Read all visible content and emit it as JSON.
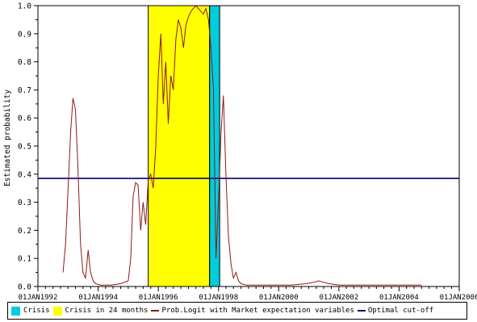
{
  "chart_data": {
    "type": "line",
    "ylabel": "Estimated probability",
    "xlabel": "",
    "ylim": [
      0.0,
      1.0
    ],
    "xlim": [
      "1992-01-01",
      "2006-01-01"
    ],
    "y_ticks": [
      "0.0",
      "0.1",
      "0.2",
      "0.3",
      "0.4",
      "0.5",
      "0.6",
      "0.7",
      "0.8",
      "0.9",
      "1.0"
    ],
    "x_ticks": [
      {
        "date": "1992-01-01",
        "label": "01JAN1992"
      },
      {
        "date": "1994-01-01",
        "label": "01JAN1994"
      },
      {
        "date": "1996-01-01",
        "label": "01JAN1996"
      },
      {
        "date": "1998-01-01",
        "label": "01JAN1998"
      },
      {
        "date": "2000-01-01",
        "label": "01JAN2000"
      },
      {
        "date": "2002-01-01",
        "label": "01JAN2002"
      },
      {
        "date": "2004-01-01",
        "label": "01JAN2004"
      },
      {
        "date": "2006-01-01",
        "label": "01JAN2006"
      }
    ],
    "shaded_periods": [
      {
        "name": "Crisis in 24 months",
        "start": "1995-09-01",
        "end": "1997-09-15",
        "color": "#ffff00"
      },
      {
        "name": "Crisis",
        "start": "1997-09-15",
        "end": "1998-01-15",
        "color": "#00ccdd"
      }
    ],
    "cutoff": {
      "name": "Optimal cut-off",
      "value": 0.385,
      "color": "#000080"
    },
    "series": [
      {
        "name": "Prob.Logit with Market expectation variables",
        "color": "#8b1a1a",
        "x": [
          "1992-11-01",
          "1992-12-01",
          "1993-01-01",
          "1993-02-01",
          "1993-03-01",
          "1993-04-01",
          "1993-05-01",
          "1993-06-01",
          "1993-07-01",
          "1993-08-01",
          "1993-09-01",
          "1993-10-01",
          "1993-11-01",
          "1993-12-01",
          "1994-02-01",
          "1994-06-01",
          "1994-10-01",
          "1995-01-01",
          "1995-02-01",
          "1995-03-01",
          "1995-04-01",
          "1995-05-01",
          "1995-06-01",
          "1995-07-01",
          "1995-08-01",
          "1995-09-01",
          "1995-10-01",
          "1995-11-01",
          "1995-12-01",
          "1996-01-01",
          "1996-02-01",
          "1996-03-01",
          "1996-04-01",
          "1996-05-01",
          "1996-06-01",
          "1996-07-01",
          "1996-08-01",
          "1996-09-01",
          "1996-10-01",
          "1996-11-01",
          "1996-12-01",
          "1997-01-01",
          "1997-02-01",
          "1997-03-01",
          "1997-04-01",
          "1997-05-01",
          "1997-06-01",
          "1997-07-01",
          "1997-08-01",
          "1997-09-01",
          "1997-10-01",
          "1997-11-01",
          "1997-12-01",
          "1998-01-01",
          "1998-02-01",
          "1998-03-01",
          "1998-04-01",
          "1998-05-01",
          "1998-06-01",
          "1998-07-01",
          "1998-08-01",
          "1998-09-01",
          "1998-10-01",
          "1998-12-01",
          "1999-06-01",
          "2000-01-01",
          "2000-06-01",
          "2000-12-01",
          "2001-03-01",
          "2001-05-01",
          "2001-07-01",
          "2001-09-01",
          "2002-01-01",
          "2002-06-01",
          "2003-01-01",
          "2003-06-01",
          "2004-01-01",
          "2004-06-01",
          "2004-10-01"
        ],
        "values": [
          0.05,
          0.15,
          0.35,
          0.55,
          0.67,
          0.63,
          0.42,
          0.15,
          0.05,
          0.03,
          0.13,
          0.05,
          0.02,
          0.01,
          0.005,
          0.005,
          0.01,
          0.02,
          0.1,
          0.32,
          0.37,
          0.36,
          0.2,
          0.3,
          0.22,
          0.38,
          0.4,
          0.35,
          0.5,
          0.75,
          0.9,
          0.65,
          0.8,
          0.58,
          0.75,
          0.7,
          0.88,
          0.95,
          0.92,
          0.85,
          0.93,
          0.96,
          0.98,
          0.99,
          1.0,
          0.99,
          0.98,
          0.97,
          0.99,
          0.95,
          0.85,
          0.7,
          0.1,
          0.3,
          0.55,
          0.68,
          0.4,
          0.18,
          0.08,
          0.03,
          0.05,
          0.02,
          0.01,
          0.005,
          0.005,
          0.005,
          0.005,
          0.01,
          0.015,
          0.02,
          0.015,
          0.01,
          0.005,
          0.005,
          0.005,
          0.005,
          0.005,
          0.005,
          0.005
        ]
      }
    ]
  },
  "legend": {
    "items": [
      {
        "kind": "box",
        "color": "#00ccdd",
        "label": "Crisis"
      },
      {
        "kind": "box",
        "color": "#ffff00",
        "label": "Crisis in 24 months"
      },
      {
        "kind": "line",
        "color": "#8b1a1a",
        "label": "Prob.Logit with Market expectation variables"
      },
      {
        "kind": "line",
        "color": "#000080",
        "label": "Optimal cut-off"
      }
    ]
  }
}
